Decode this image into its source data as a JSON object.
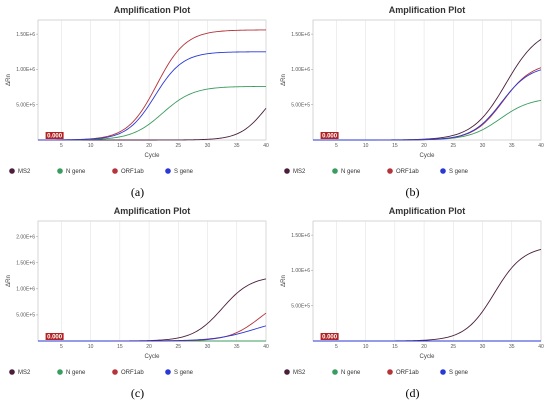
{
  "legend": [
    {
      "name": "MS2",
      "color": "#4b1f3c"
    },
    {
      "name": "N gene",
      "color": "#3a9c5f"
    },
    {
      "name": "ORF1ab",
      "color": "#b5333a"
    },
    {
      "name": "S gene",
      "color": "#2a38d6"
    }
  ],
  "chart_data": [
    {
      "type": "line",
      "caption": "(a)",
      "title": "Amplification Plot",
      "xlabel": "Cycle",
      "ylabel": "ΔRn",
      "xlim": [
        1,
        40
      ],
      "xticks": [
        5,
        10,
        15,
        20,
        25,
        30,
        35,
        40
      ],
      "ylim": [
        0,
        1700000
      ],
      "yticks": [
        {
          "v": 500000,
          "label": "5.00E+5"
        },
        {
          "v": 1000000,
          "label": "1.00E+6"
        },
        {
          "v": 1500000,
          "label": "1.50E+6"
        }
      ],
      "threshold_label": "0.000",
      "series": [
        {
          "name": "MS2",
          "max": 900000,
          "mid": 40,
          "k": 0.45
        },
        {
          "name": "N gene",
          "max": 760000,
          "mid": 22.3,
          "k": 0.38
        },
        {
          "name": "ORF1ab",
          "max": 1560000,
          "mid": 21.3,
          "k": 0.4
        },
        {
          "name": "S gene",
          "max": 1250000,
          "mid": 21.0,
          "k": 0.42
        }
      ]
    },
    {
      "type": "line",
      "caption": "(b)",
      "title": "Amplification Plot",
      "xlabel": "Cycle",
      "ylabel": "ΔRn",
      "xlim": [
        1,
        40
      ],
      "xticks": [
        5,
        10,
        15,
        20,
        25,
        30,
        35,
        40
      ],
      "ylim": [
        0,
        1700000
      ],
      "yticks": [
        {
          "v": 500000,
          "label": "5.00E+5"
        },
        {
          "v": 1000000,
          "label": "1.00E+6"
        },
        {
          "v": 1500000,
          "label": "1.50E+6"
        }
      ],
      "threshold_label": "0.000",
      "series": [
        {
          "name": "MS2",
          "max": 1600000,
          "mid": 34.0,
          "k": 0.35
        },
        {
          "name": "N gene",
          "max": 600000,
          "mid": 33.0,
          "k": 0.38
        },
        {
          "name": "ORF1ab",
          "max": 1100000,
          "mid": 33.5,
          "k": 0.4
        },
        {
          "name": "S gene",
          "max": 1060000,
          "mid": 33.2,
          "k": 0.4
        }
      ]
    },
    {
      "type": "line",
      "caption": "(c)",
      "title": "Amplification Plot",
      "xlabel": "Cycle",
      "ylabel": "ΔRn",
      "xlim": [
        1,
        40
      ],
      "xticks": [
        5,
        10,
        15,
        20,
        25,
        30,
        35,
        40
      ],
      "ylim": [
        0,
        2300000
      ],
      "yticks": [
        {
          "v": 500000,
          "label": "5.00E+5"
        },
        {
          "v": 1000000,
          "label": "1.00E+6"
        },
        {
          "v": 1500000,
          "label": "1.50E+6"
        },
        {
          "v": 2000000,
          "label": "2.00E+6"
        }
      ],
      "threshold_label": "0.000",
      "series": [
        {
          "name": "MS2",
          "max": 1250000,
          "mid": 32.5,
          "k": 0.4
        },
        {
          "name": "N gene",
          "max": 0,
          "mid": 50,
          "k": 0.4
        },
        {
          "name": "ORF1ab",
          "max": 900000,
          "mid": 39.0,
          "k": 0.38
        },
        {
          "name": "S gene",
          "max": 450000,
          "mid": 38.0,
          "k": 0.3
        }
      ]
    },
    {
      "type": "line",
      "caption": "(d)",
      "title": "Amplification Plot",
      "xlabel": "Cycle",
      "ylabel": "ΔRn",
      "xlim": [
        1,
        40
      ],
      "xticks": [
        5,
        10,
        15,
        20,
        25,
        30,
        35,
        40
      ],
      "ylim": [
        0,
        1700000
      ],
      "yticks": [
        {
          "v": 500000,
          "label": "5.00E+5"
        },
        {
          "v": 1000000,
          "label": "1.00E+6"
        },
        {
          "v": 1500000,
          "label": "1.50E+6"
        }
      ],
      "threshold_label": "0.000",
      "series": [
        {
          "name": "MS2",
          "max": 1350000,
          "mid": 32.0,
          "k": 0.4
        },
        {
          "name": "N gene",
          "max": 0,
          "mid": 50,
          "k": 0.4
        },
        {
          "name": "ORF1ab",
          "max": 0,
          "mid": 50,
          "k": 0.4
        },
        {
          "name": "S gene",
          "max": 0,
          "mid": 50,
          "k": 0.4
        }
      ]
    }
  ]
}
